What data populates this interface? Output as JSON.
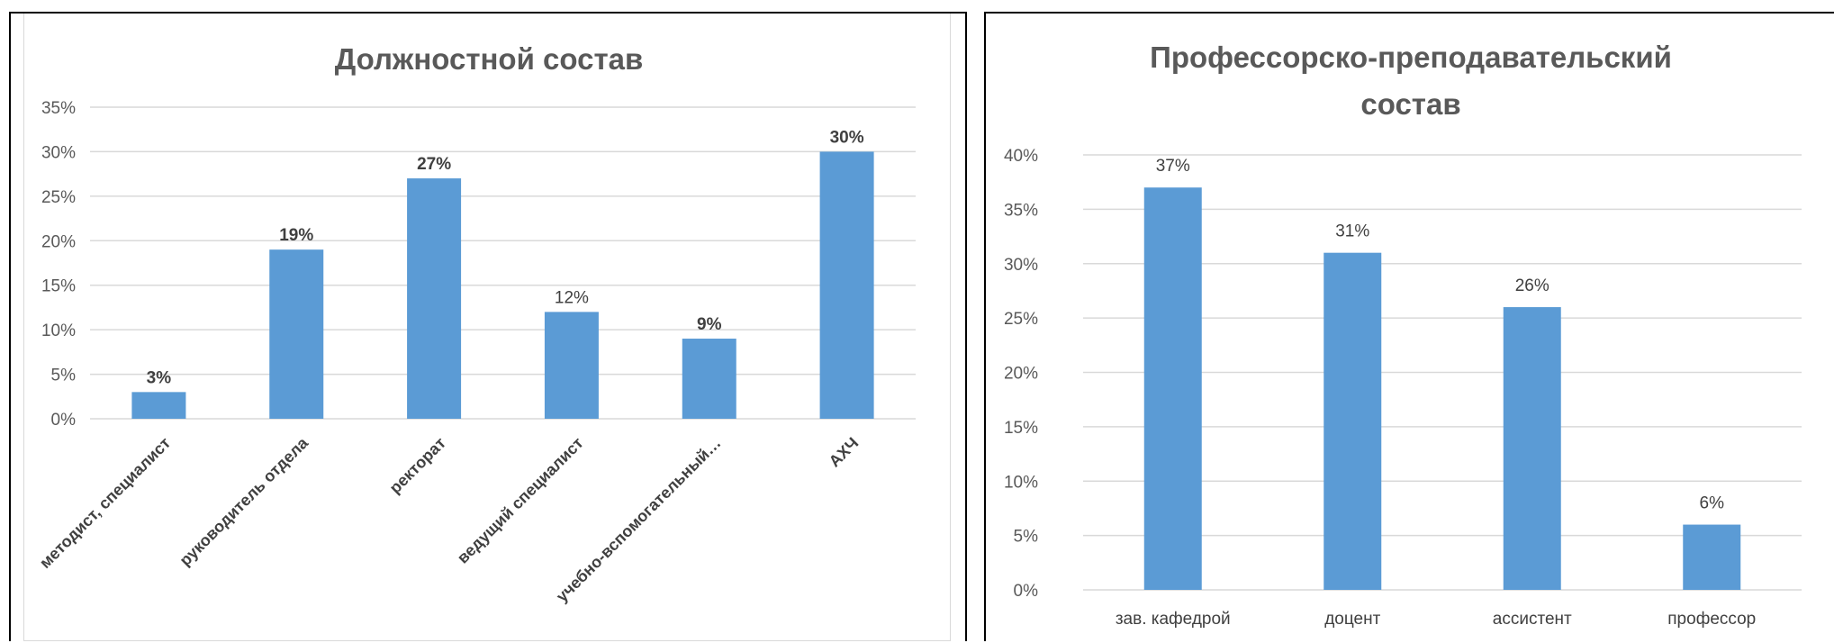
{
  "colors": {
    "bar": "#5b9bd5",
    "grid": "#d9d9d9",
    "text": "#595959"
  },
  "chart_data": [
    {
      "type": "bar",
      "title": "Должностной состав",
      "categories": [
        "методист, специалист",
        "руководитель отдела",
        "ректорат",
        "ведущий специалист",
        "учебно-вспомогательный…",
        "АХЧ"
      ],
      "values": [
        3,
        19,
        27,
        12,
        9,
        30
      ],
      "data_labels": [
        "3%",
        "19%",
        "27%",
        "12%",
        "9%",
        "30%"
      ],
      "ylim": [
        0,
        35
      ],
      "y_ticks": [
        "0%",
        "5%",
        "10%",
        "15%",
        "20%",
        "25%",
        "30%",
        "35%"
      ],
      "xlabel": "",
      "ylabel": "",
      "grid": true
    },
    {
      "type": "bar",
      "title": "Профессорско-преподавательский состав",
      "title_lines": [
        "Профессорско-преподавательский",
        "состав"
      ],
      "categories": [
        "зав. кафедрой",
        "доцент",
        "ассистент",
        "профессор"
      ],
      "values": [
        37,
        31,
        26,
        6
      ],
      "data_labels": [
        "37%",
        "31%",
        "26%",
        "6%"
      ],
      "ylim": [
        0,
        40
      ],
      "y_ticks": [
        "0%",
        "5%",
        "10%",
        "15%",
        "20%",
        "25%",
        "30%",
        "35%",
        "40%"
      ],
      "xlabel": "",
      "ylabel": "",
      "grid": true
    }
  ]
}
